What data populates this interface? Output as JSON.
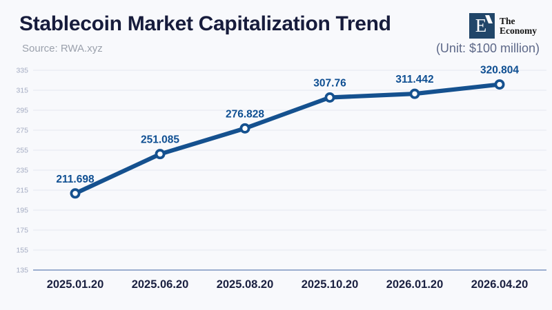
{
  "header": {
    "title": "Stablecoin Market Capitalization Trend",
    "source": "Source: RWA.xyz",
    "unit": "(Unit: $100 million)",
    "logo": {
      "mark": "E",
      "name_line1": "The",
      "name_line2": "Economy"
    }
  },
  "chart_data": {
    "type": "line",
    "x": [
      "2025.01.20",
      "2025.06.20",
      "2025.08.20",
      "2025.10.20",
      "2026.01.20",
      "2026.04.20"
    ],
    "values": [
      211.698,
      251.085,
      276.828,
      307.76,
      311.442,
      320.804
    ],
    "point_labels": [
      "211.698",
      "251.085",
      "276.828",
      "307.76",
      "311.442",
      "320.804"
    ],
    "title": "Stablecoin Market Capitalization Trend",
    "xlabel": "",
    "ylabel": "",
    "ylim": [
      135,
      335
    ],
    "ytick_step": 20,
    "yticks": [
      135,
      155,
      175,
      195,
      215,
      235,
      255,
      275,
      295,
      315,
      335
    ],
    "grid": true,
    "legend": false,
    "colors": {
      "line": "#15518f",
      "marker_fill": "#ffffff",
      "data_label": "#0f4f92",
      "grid": "#e3e6ef",
      "axis_line": "#8ca2c9",
      "y_tick": "#a3abc2",
      "x_tick": "#1a2040"
    }
  },
  "theme": {
    "background": "#f8f9fc",
    "title_color": "#171c3c",
    "source_color": "#9ba1ac",
    "unit_color": "#5d6888",
    "logo_bg": "#214669",
    "logo_fg": "#ffffff",
    "logo_text_color": "#121212"
  }
}
